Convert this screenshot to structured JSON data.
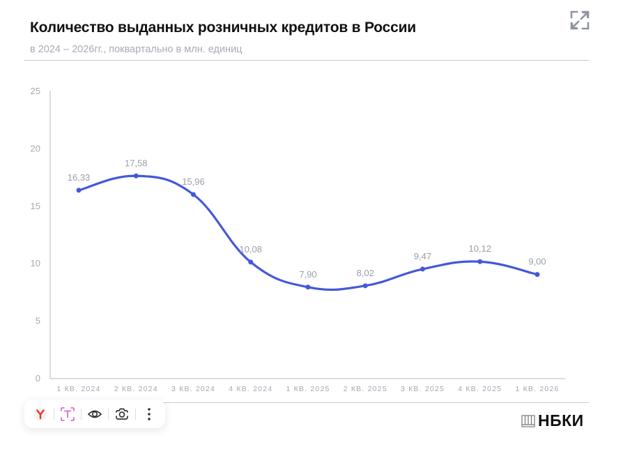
{
  "header": {
    "title": "Количество выданных розничных кредитов в России",
    "subtitle": "в 2024 – 2026гг., поквартально в млн. единиц",
    "expand_icon": "expand-icon"
  },
  "chart_data": {
    "type": "line",
    "title": "Количество выданных розничных кредитов в России",
    "subtitle": "в 2024 – 2026гг., поквартально в млн. единиц",
    "xlabel": "",
    "ylabel": "",
    "categories": [
      "1 КВ. 2024",
      "2 КВ. 2024",
      "3 КВ. 2024",
      "4 КВ. 2024",
      "1 КВ. 2025",
      "2 КВ. 2025",
      "3 КВ. 2025",
      "4 КВ. 2025",
      "1 КВ. 2026"
    ],
    "values": [
      16.33,
      17.58,
      15.96,
      10.08,
      7.9,
      8.02,
      9.47,
      10.12,
      9.0
    ],
    "value_labels": [
      "16,33",
      "17,58",
      "15,96",
      "10,08",
      "7,90",
      "8,02",
      "9,47",
      "10,12",
      "9,00"
    ],
    "yticks": [
      "0",
      "5",
      "10",
      "15",
      "20",
      "25"
    ],
    "ylim": [
      0,
      25
    ],
    "grid": false,
    "legend": null,
    "smooth": true,
    "line_color": "#4458d8"
  },
  "toolbar": {
    "items": [
      {
        "name": "yandex-icon"
      },
      {
        "name": "text-recognition-icon"
      },
      {
        "name": "eye-icon"
      },
      {
        "name": "camera-icon"
      },
      {
        "name": "more-vertical-icon"
      }
    ]
  },
  "footer": {
    "logo_text": "НБКИ"
  }
}
